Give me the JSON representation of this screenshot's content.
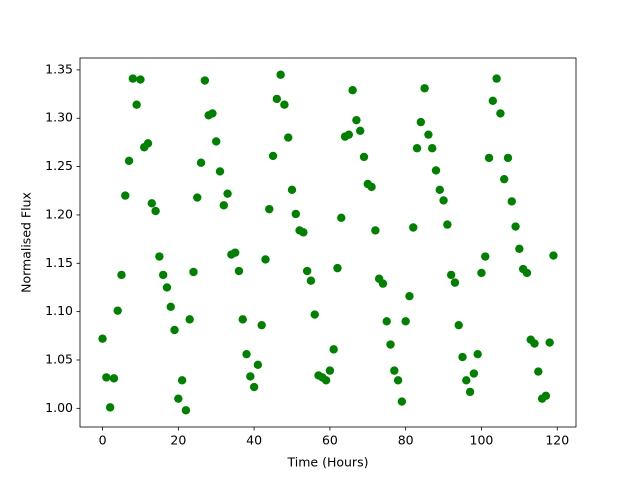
{
  "chart_data": {
    "type": "scatter",
    "x_label": "Time (Hours)",
    "y_label": "Normalised Flux",
    "series": [
      {
        "color": "#008000",
        "x": [
          0,
          1,
          2,
          3,
          4,
          5,
          6,
          7,
          8,
          9,
          10,
          11,
          12,
          13,
          14,
          15,
          16,
          17,
          18,
          19,
          20,
          21,
          22,
          23,
          24,
          25,
          26,
          27,
          28,
          29,
          30,
          31,
          32,
          33,
          34,
          35,
          36,
          37,
          38,
          39,
          40,
          41,
          42,
          43,
          44,
          45,
          46,
          47,
          48,
          49,
          50,
          51,
          52,
          53,
          54,
          55,
          56,
          57,
          58,
          59,
          60,
          61,
          62,
          63,
          64,
          65,
          66,
          67,
          68,
          69,
          70,
          71,
          72,
          73,
          74,
          75,
          76,
          77,
          78,
          79,
          80,
          81,
          82,
          83,
          84,
          85,
          86,
          87,
          88,
          89,
          90,
          91,
          92,
          93,
          94,
          95,
          96,
          97,
          98,
          99,
          100,
          101,
          102,
          103,
          104,
          105,
          106,
          107,
          108,
          109,
          110,
          111,
          112,
          113,
          114,
          115,
          116,
          117,
          118,
          119
        ],
        "values": [
          1.072,
          1.032,
          1.001,
          1.031,
          1.101,
          1.138,
          1.22,
          1.256,
          1.341,
          1.314,
          1.34,
          1.27,
          1.274,
          1.212,
          1.204,
          1.157,
          1.138,
          1.125,
          1.105,
          1.081,
          1.01,
          1.029,
          0.998,
          1.092,
          1.141,
          1.218,
          1.254,
          1.339,
          1.303,
          1.305,
          1.276,
          1.245,
          1.21,
          1.222,
          1.159,
          1.161,
          1.142,
          1.092,
          1.056,
          1.033,
          1.022,
          1.045,
          1.086,
          1.154,
          1.206,
          1.261,
          1.32,
          1.345,
          1.314,
          1.28,
          1.226,
          1.201,
          1.184,
          1.182,
          1.142,
          1.132,
          1.097,
          1.034,
          1.032,
          1.029,
          1.039,
          1.061,
          1.145,
          1.197,
          1.281,
          1.283,
          1.329,
          1.298,
          1.287,
          1.26,
          1.232,
          1.229,
          1.184,
          1.134,
          1.129,
          1.09,
          1.066,
          1.039,
          1.029,
          1.007,
          1.09,
          1.116,
          1.187,
          1.269,
          1.296,
          1.331,
          1.283,
          1.269,
          1.246,
          1.226,
          1.215,
          1.19,
          1.138,
          1.13,
          1.086,
          1.053,
          1.029,
          1.017,
          1.036,
          1.056,
          1.14,
          1.157,
          1.259,
          1.318,
          1.341,
          1.305,
          1.237,
          1.259,
          1.214,
          1.188,
          1.165,
          1.144,
          1.14,
          1.071,
          1.067,
          1.038,
          1.01,
          1.013,
          1.068,
          1.158
        ]
      }
    ],
    "xlim": [
      -5.95,
      124.95
    ],
    "xticks": [
      0,
      20,
      40,
      60,
      80,
      100,
      120
    ],
    "ylim": [
      0.9807,
      1.3623
    ],
    "yticks": [
      {
        "value": 1.0,
        "label": "1.00"
      },
      {
        "value": 1.05,
        "label": "1.05"
      },
      {
        "value": 1.1,
        "label": "1.10"
      },
      {
        "value": 1.15,
        "label": "1.15"
      },
      {
        "value": 1.2,
        "label": "1.20"
      },
      {
        "value": 1.25,
        "label": "1.25"
      },
      {
        "value": 1.3,
        "label": "1.30"
      },
      {
        "value": 1.35,
        "label": "1.35"
      }
    ],
    "grid": false
  }
}
